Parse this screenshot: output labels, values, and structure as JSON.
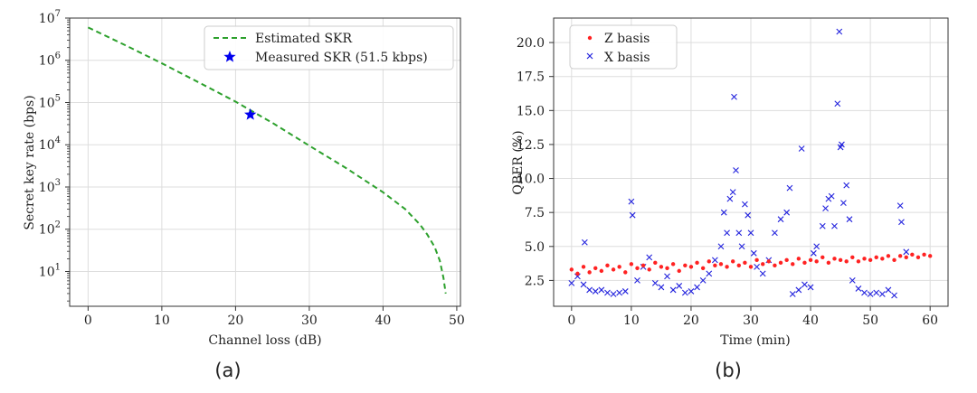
{
  "chart_data": [
    {
      "type": "line",
      "caption": "(a)",
      "xlabel": "Channel loss (dB)",
      "ylabel": "Secret key rate (bps)",
      "xscale": "linear",
      "yscale": "log",
      "xlim": [
        -2.5,
        50.5
      ],
      "ylim": [
        1.5,
        10000000
      ],
      "xticks": [
        0,
        10,
        20,
        30,
        40,
        50
      ],
      "yticks": [
        10,
        100,
        1000,
        10000,
        100000,
        1000000,
        10000000
      ],
      "grid": true,
      "legend_position": "top-right",
      "series": [
        {
          "name": "Estimated SKR",
          "style": "dashed-line",
          "color": "#2ca02c",
          "points": [
            [
              0,
              6000000
            ],
            [
              5,
              2300000
            ],
            [
              10,
              850000
            ],
            [
              15,
              300000
            ],
            [
              20,
              105000
            ],
            [
              25,
              33000
            ],
            [
              30,
              9500
            ],
            [
              35,
              2800
            ],
            [
              40,
              750
            ],
            [
              43,
              300
            ],
            [
              45,
              130
            ],
            [
              46,
              75
            ],
            [
              47,
              38
            ],
            [
              47.7,
              18
            ],
            [
              48.2,
              7
            ],
            [
              48.5,
              3
            ]
          ]
        },
        {
          "name": "Measured SKR (51.5 kbps)",
          "style": "star-marker",
          "color": "#0000ee",
          "points": [
            [
              22,
              51500
            ]
          ]
        }
      ]
    },
    {
      "type": "scatter",
      "caption": "(b)",
      "xlabel": "Time (min)",
      "ylabel": "QBER (%)",
      "xlim": [
        -3,
        63
      ],
      "ylim": [
        0.6,
        21.8
      ],
      "xticks": [
        0,
        10,
        20,
        30,
        40,
        50,
        60
      ],
      "yticks": [
        "2.5",
        "5.0",
        "7.5",
        "10.0",
        "12.5",
        "15.0",
        "17.5",
        "20.0"
      ],
      "grid": true,
      "legend_position": "top-left",
      "series": [
        {
          "name": "Z basis",
          "marker": "dot",
          "color": "#ff2222",
          "points": [
            [
              0,
              3.3
            ],
            [
              1,
              3.0
            ],
            [
              2,
              3.5
            ],
            [
              3,
              3.1
            ],
            [
              4,
              3.4
            ],
            [
              5,
              3.2
            ],
            [
              6,
              3.6
            ],
            [
              7,
              3.3
            ],
            [
              8,
              3.5
            ],
            [
              9,
              3.1
            ],
            [
              10,
              3.7
            ],
            [
              11,
              3.4
            ],
            [
              12,
              3.6
            ],
            [
              13,
              3.3
            ],
            [
              14,
              3.8
            ],
            [
              15,
              3.5
            ],
            [
              16,
              3.4
            ],
            [
              17,
              3.7
            ],
            [
              18,
              3.2
            ],
            [
              19,
              3.6
            ],
            [
              20,
              3.5
            ],
            [
              21,
              3.8
            ],
            [
              22,
              3.4
            ],
            [
              23,
              3.9
            ],
            [
              24,
              3.6
            ],
            [
              25,
              3.7
            ],
            [
              26,
              3.5
            ],
            [
              27,
              3.9
            ],
            [
              28,
              3.6
            ],
            [
              29,
              3.8
            ],
            [
              30,
              3.5
            ],
            [
              31,
              4.0
            ],
            [
              32,
              3.7
            ],
            [
              33,
              3.9
            ],
            [
              34,
              3.6
            ],
            [
              35,
              3.8
            ],
            [
              36,
              4.0
            ],
            [
              37,
              3.7
            ],
            [
              38,
              4.1
            ],
            [
              39,
              3.8
            ],
            [
              40,
              4.0
            ],
            [
              41,
              3.9
            ],
            [
              42,
              4.2
            ],
            [
              43,
              3.8
            ],
            [
              44,
              4.1
            ],
            [
              45,
              4.0
            ],
            [
              46,
              3.9
            ],
            [
              47,
              4.2
            ],
            [
              48,
              3.9
            ],
            [
              49,
              4.1
            ],
            [
              50,
              4.0
            ],
            [
              51,
              4.2
            ],
            [
              52,
              4.1
            ],
            [
              53,
              4.3
            ],
            [
              54,
              4.0
            ],
            [
              55,
              4.3
            ],
            [
              56,
              4.2
            ],
            [
              57,
              4.4
            ],
            [
              58,
              4.2
            ],
            [
              59,
              4.4
            ],
            [
              60,
              4.3
            ]
          ]
        },
        {
          "name": "X basis",
          "marker": "x",
          "color": "#2222dd",
          "points": [
            [
              0,
              2.3
            ],
            [
              1,
              2.8
            ],
            [
              2,
              2.2
            ],
            [
              2.2,
              5.3
            ],
            [
              3,
              1.8
            ],
            [
              4,
              1.7
            ],
            [
              5,
              1.8
            ],
            [
              6,
              1.6
            ],
            [
              7,
              1.5
            ],
            [
              8,
              1.6
            ],
            [
              9,
              1.7
            ],
            [
              10,
              8.3
            ],
            [
              10.2,
              7.3
            ],
            [
              11,
              2.5
            ],
            [
              12,
              3.5
            ],
            [
              13,
              4.2
            ],
            [
              14,
              2.3
            ],
            [
              15,
              2.0
            ],
            [
              16,
              2.8
            ],
            [
              17,
              1.8
            ],
            [
              18,
              2.1
            ],
            [
              19,
              1.6
            ],
            [
              20,
              1.7
            ],
            [
              21,
              2.0
            ],
            [
              22,
              2.5
            ],
            [
              23,
              3.0
            ],
            [
              24,
              4.0
            ],
            [
              25,
              5.0
            ],
            [
              25.5,
              7.5
            ],
            [
              26,
              6.0
            ],
            [
              26.5,
              8.5
            ],
            [
              27,
              9.0
            ],
            [
              27.2,
              16.0
            ],
            [
              27.5,
              10.6
            ],
            [
              28,
              6.0
            ],
            [
              28.5,
              5.0
            ],
            [
              29,
              8.1
            ],
            [
              29.5,
              7.3
            ],
            [
              30,
              6.0
            ],
            [
              30.5,
              4.5
            ],
            [
              31,
              3.5
            ],
            [
              32,
              3.0
            ],
            [
              33,
              4.0
            ],
            [
              34,
              6.0
            ],
            [
              35,
              7.0
            ],
            [
              36,
              7.5
            ],
            [
              36.5,
              9.3
            ],
            [
              37,
              1.5
            ],
            [
              38,
              1.8
            ],
            [
              38.5,
              12.2
            ],
            [
              39,
              2.2
            ],
            [
              40,
              2.0
            ],
            [
              40.5,
              4.5
            ],
            [
              41,
              5.0
            ],
            [
              42,
              6.5
            ],
            [
              42.5,
              7.8
            ],
            [
              43,
              8.5
            ],
            [
              43.5,
              8.7
            ],
            [
              44,
              6.5
            ],
            [
              44.5,
              15.5
            ],
            [
              44.8,
              20.8
            ],
            [
              45,
              12.3
            ],
            [
              45.2,
              12.5
            ],
            [
              45.5,
              8.2
            ],
            [
              46,
              9.5
            ],
            [
              46.5,
              7.0
            ],
            [
              47,
              2.5
            ],
            [
              48,
              1.9
            ],
            [
              49,
              1.6
            ],
            [
              50,
              1.5
            ],
            [
              51,
              1.6
            ],
            [
              52,
              1.5
            ],
            [
              53,
              1.8
            ],
            [
              54,
              1.4
            ],
            [
              55,
              8.0
            ],
            [
              55.2,
              6.8
            ],
            [
              56,
              4.6
            ]
          ]
        }
      ]
    }
  ]
}
